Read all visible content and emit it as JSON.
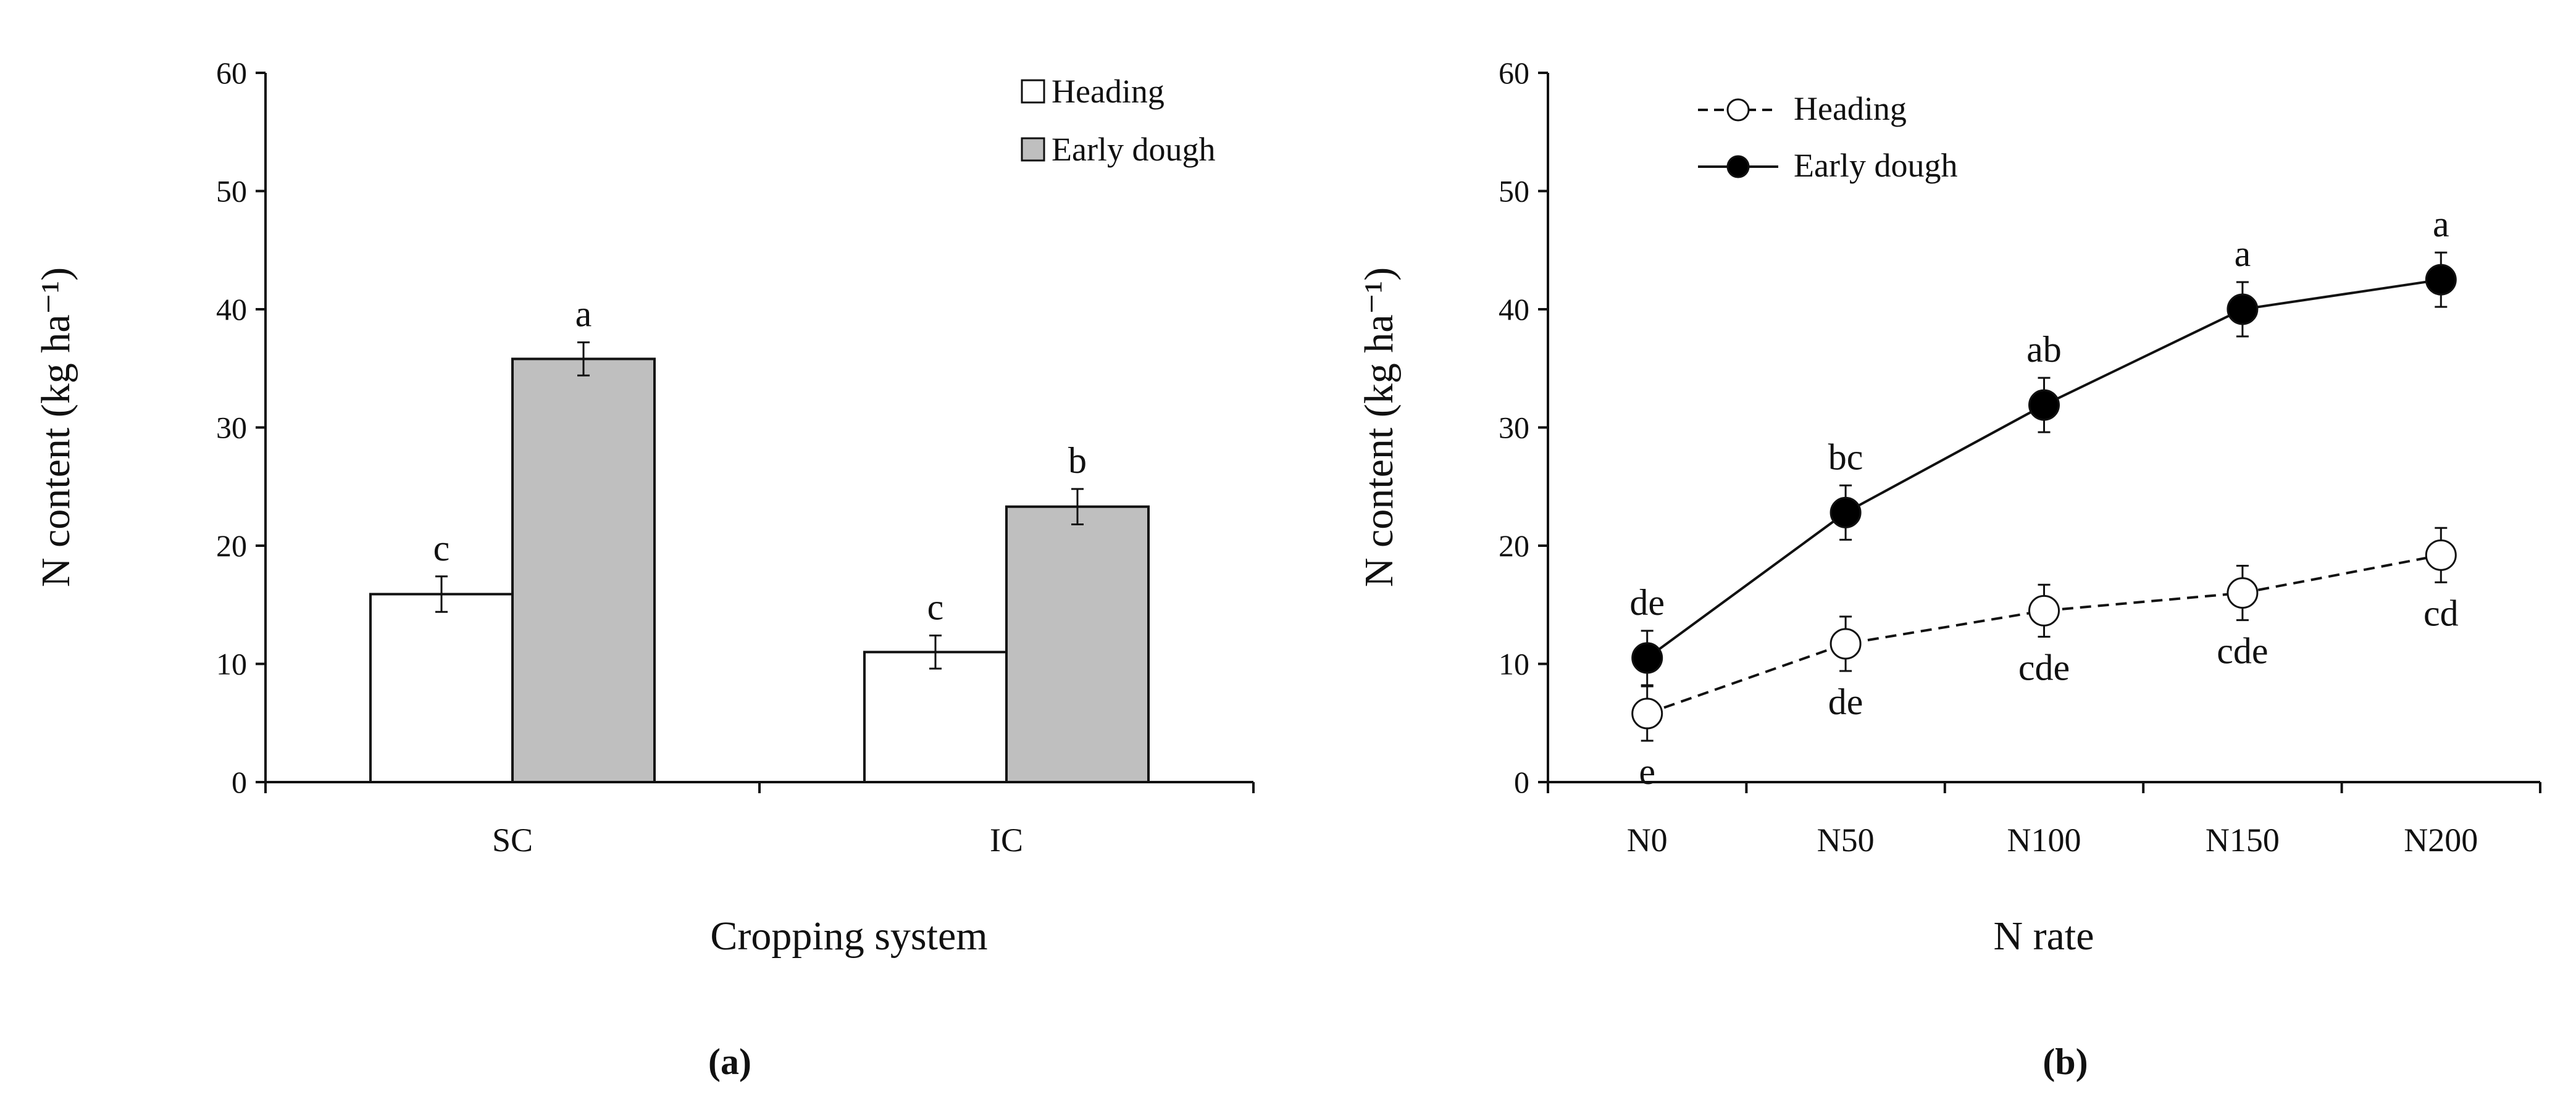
{
  "colors": {
    "axis": "#111111",
    "heading_bar": "#ffffff",
    "early_dough_bar": "#bfbfbf",
    "heading_marker": "#ffffff",
    "early_dough_marker": "#000000"
  },
  "chart_data": [
    {
      "type": "bar",
      "panel_label": "(a)",
      "xlabel": "Cropping system",
      "ylabel": "N content (kg ha⁻¹)",
      "ylim": [
        0,
        60
      ],
      "yticks": [
        "0",
        "10",
        "20",
        "30",
        "40",
        "50",
        "60"
      ],
      "categories": [
        "SC",
        "IC"
      ],
      "legend_position": "top-right",
      "series": [
        {
          "name": "Heading",
          "values": [
            15.9,
            11.0
          ],
          "errors": [
            1.5,
            1.4
          ],
          "letters": [
            "c",
            "c"
          ]
        },
        {
          "name": "Early dough",
          "values": [
            35.8,
            23.3
          ],
          "errors": [
            1.4,
            1.5
          ],
          "letters": [
            "a",
            "b"
          ]
        }
      ]
    },
    {
      "type": "line",
      "panel_label": "(b)",
      "xlabel": "N rate",
      "ylabel": "N content (kg ha⁻¹)",
      "ylim": [
        0,
        60
      ],
      "yticks": [
        "0",
        "10",
        "20",
        "30",
        "40",
        "50",
        "60"
      ],
      "categories": [
        "N0",
        "N50",
        "N100",
        "N150",
        "N200"
      ],
      "legend_position": "top-left",
      "series": [
        {
          "name": "Heading",
          "line_style": "dashed",
          "marker": "open-circle",
          "values": [
            5.8,
            11.7,
            14.5,
            16.0,
            19.2
          ],
          "errors": [
            2.3,
            2.3,
            2.2,
            2.3,
            2.3
          ],
          "letters": [
            "e",
            "de",
            "cde",
            "cde",
            "cd"
          ]
        },
        {
          "name": "Early dough",
          "line_style": "solid",
          "marker": "filled-circle",
          "values": [
            10.5,
            22.8,
            31.9,
            40.0,
            42.5
          ],
          "errors": [
            2.3,
            2.3,
            2.3,
            2.3,
            2.3
          ],
          "letters": [
            "de",
            "bc",
            "ab",
            "a",
            "a"
          ]
        }
      ]
    }
  ]
}
